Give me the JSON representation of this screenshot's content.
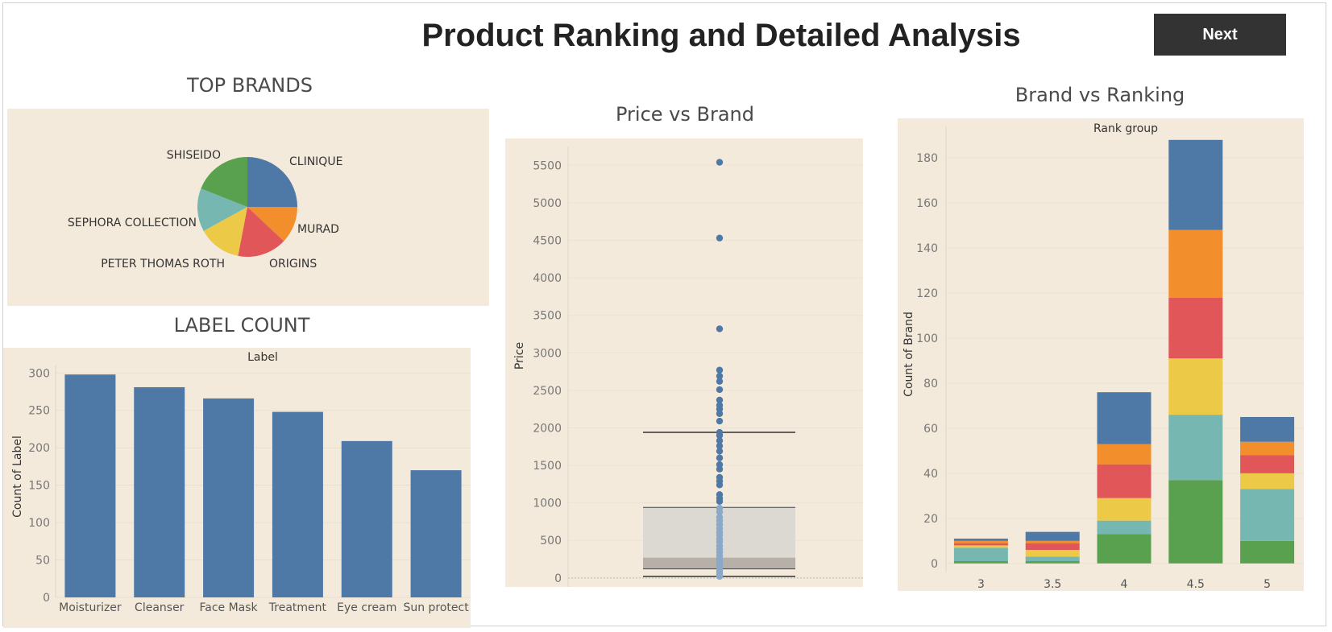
{
  "header": {
    "title": "Product Ranking and Detailed Analysis",
    "next_label": "Next"
  },
  "sections": {
    "top_brands": "TOP BRANDS",
    "label_count": "LABEL COUNT",
    "price_vs_brand": "Price vs Brand",
    "brand_vs_ranking": "Brand vs Ranking"
  },
  "colors": {
    "panel_bg": "#f4eadb",
    "blue": "#4e79a7",
    "orange": "#f28e2b",
    "red": "#e15759",
    "yellow": "#edc948",
    "teal": "#76b7b2",
    "green": "#59a14f"
  },
  "chart_data": [
    {
      "id": "top_brands",
      "type": "pie",
      "labels": [
        "CLINIQUE",
        "MURAD",
        "ORIGINS",
        "PETER THOMAS ROTH",
        "SEPHORA COLLECTION",
        "SHISEIDO"
      ],
      "values": [
        25,
        12,
        16,
        14,
        14,
        19
      ],
      "colors": [
        "#4e79a7",
        "#f28e2b",
        "#e15759",
        "#edc948",
        "#76b7b2",
        "#59a14f"
      ]
    },
    {
      "id": "label_count",
      "type": "bar",
      "title": "Label",
      "categories": [
        "Moisturizer",
        "Cleanser",
        "Face Mask",
        "Treatment",
        "Eye cream",
        "Sun protect"
      ],
      "values": [
        298,
        281,
        266,
        248,
        209,
        170
      ],
      "ylabel": "Count of Label",
      "ylim": [
        0,
        310
      ],
      "yticks": [
        0,
        50,
        100,
        150,
        200,
        250,
        300
      ]
    },
    {
      "id": "price_vs_brand",
      "type": "scatter",
      "ylabel": "Price",
      "ylim": [
        -120,
        5750
      ],
      "yticks": [
        0,
        500,
        1000,
        1500,
        2000,
        2500,
        3000,
        3500,
        4000,
        4500,
        5000,
        5500
      ],
      "points": [
        5540,
        4530,
        3320,
        2770,
        2690,
        2620,
        2510,
        2370,
        2300,
        2250,
        2190,
        2090,
        1940,
        1900,
        1830,
        1760,
        1690,
        1600,
        1510,
        1450,
        1340,
        1290,
        1240,
        1110,
        1060,
        1020,
        930,
        880,
        810,
        760,
        710,
        660,
        610,
        570,
        520,
        480,
        430,
        380,
        340,
        300,
        260,
        220,
        190,
        160,
        130,
        100,
        80,
        60,
        40,
        20
      ],
      "box": {
        "whisker_low": 20,
        "q1": 120,
        "median": 270,
        "q3": 940,
        "whisker_high": 1940
      }
    },
    {
      "id": "brand_vs_ranking",
      "type": "bar",
      "title": "Rank group",
      "categories": [
        "3",
        "3.5",
        "4",
        "4.5",
        "5"
      ],
      "ylabel": "Count of Brand",
      "ylim": [
        -4,
        194
      ],
      "yticks": [
        0,
        20,
        40,
        60,
        80,
        100,
        120,
        140,
        160,
        180
      ],
      "stack_order": [
        "green",
        "teal",
        "yellow",
        "red",
        "orange",
        "blue"
      ],
      "stacks": [
        [
          1,
          6,
          1,
          1,
          1,
          1
        ],
        [
          1,
          2,
          3,
          3,
          1,
          4
        ],
        [
          13,
          6,
          10,
          15,
          9,
          23
        ],
        [
          37,
          29,
          25,
          27,
          30,
          40
        ],
        [
          10,
          23,
          7,
          8,
          6,
          11
        ]
      ]
    }
  ]
}
